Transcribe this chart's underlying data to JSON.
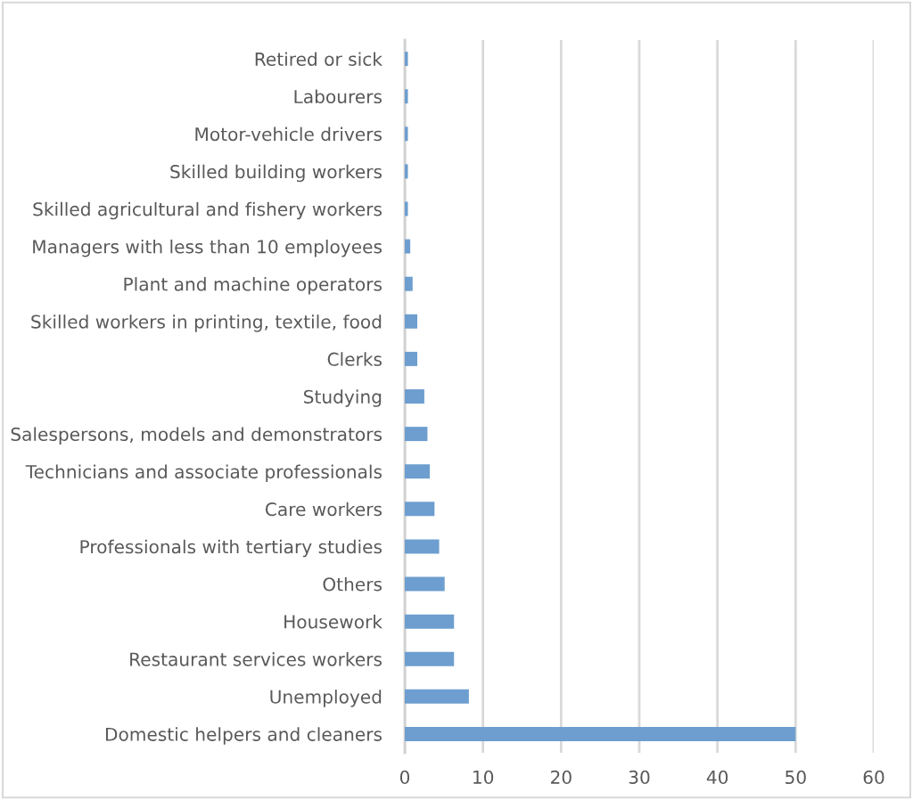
{
  "chart_data": {
    "type": "bar",
    "orientation": "horizontal",
    "categories": [
      "Retired or sick",
      "Labourers",
      "Motor-vehicle drivers",
      "Skilled building workers",
      "Skilled agricultural and fishery workers",
      "Managers with less than 10 employees",
      "Plant and machine operators",
      "Skilled workers in printing, textile, food",
      "Clerks",
      "Studying",
      "Salespersons, models and demonstrators",
      "Technicians and associate professionals",
      "Care workers",
      "Professionals with tertiary studies",
      "Others",
      "Housework",
      "Restaurant services workers",
      "Unemployed",
      "Domestic helpers and cleaners"
    ],
    "values": [
      0.4,
      0.4,
      0.4,
      0.4,
      0.4,
      0.7,
      1.0,
      1.6,
      1.6,
      2.5,
      2.9,
      3.2,
      3.8,
      4.4,
      5.1,
      6.3,
      6.3,
      8.2,
      50
    ],
    "color": "#6d9ecf",
    "xlim": [
      0,
      60
    ],
    "xticks": [
      0,
      10,
      20,
      30,
      40,
      50,
      60
    ],
    "grid": "x",
    "legend": false
  }
}
